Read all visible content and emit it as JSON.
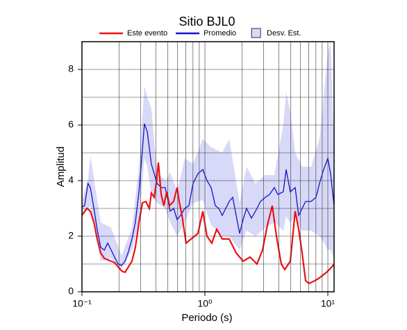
{
  "chart_data": {
    "type": "line",
    "title": "Sitio BJL0",
    "x_label": "Periodo (s)",
    "y_label": "Amplitud",
    "log_x": true,
    "grid": true,
    "xlim": [
      0.1,
      11.24
    ],
    "ylim": [
      0,
      9
    ],
    "xticks": [
      {
        "value": 0.1,
        "label": "10⁻¹"
      },
      {
        "value": 1,
        "label": "10⁰"
      },
      {
        "value": 10,
        "label": "10¹"
      }
    ],
    "xgrid_minor": [
      0.2,
      0.3,
      0.4,
      0.5,
      0.6,
      0.7,
      0.8,
      0.9,
      2,
      3,
      4,
      5,
      6,
      7,
      8,
      9
    ],
    "yticks": [
      0,
      2,
      4,
      6,
      8
    ],
    "ygrid_minor": [
      1,
      3,
      5,
      7
    ],
    "band": {
      "name": "Desv. Est.",
      "color": "#d8d8f8",
      "x": [
        0.1,
        0.112,
        0.117,
        0.142,
        0.173,
        0.21,
        0.255,
        0.291,
        0.322,
        0.34,
        0.367,
        0.408,
        0.476,
        0.522,
        0.594,
        0.686,
        0.802,
        0.962,
        1.124,
        1.384,
        1.577,
        1.916,
        2.183,
        2.582,
        3.101,
        3.673,
        4.345,
        4.581,
        4.955,
        5.427,
        6.18,
        7.311,
        8.551,
        9.247,
        10.0,
        10.53,
        11.24
      ],
      "lower": [
        2.8,
        3.0,
        3.1,
        1.1,
        1.2,
        0.8,
        1.5,
        2.5,
        4.8,
        4.5,
        3.5,
        3.2,
        3.0,
        2.5,
        2.0,
        2.5,
        3.2,
        3.3,
        2.4,
        2.0,
        2.0,
        1.5,
        2.2,
        2.0,
        2.3,
        2.5,
        2.2,
        2.7,
        2.5,
        2.7,
        2.2,
        2.2,
        2.0,
        1.8,
        1.5,
        1.5,
        1.2
      ],
      "upper": [
        3.3,
        4.0,
        4.9,
        2.5,
        2.3,
        1.3,
        2.3,
        4.5,
        7.4,
        7.0,
        6.6,
        4.3,
        4.0,
        4.3,
        3.6,
        4.8,
        4.6,
        5.5,
        5.2,
        5.0,
        5.5,
        3.2,
        4.5,
        3.9,
        4.2,
        4.2,
        6.0,
        7.2,
        6.5,
        5.0,
        4.5,
        4.5,
        5.5,
        7.0,
        8.6,
        9.0,
        5.0
      ]
    },
    "series": [
      {
        "name": "Este evento",
        "color": "#ee1111",
        "x": [
          0.1,
          0.11,
          0.117,
          0.125,
          0.133,
          0.142,
          0.152,
          0.173,
          0.184,
          0.197,
          0.21,
          0.224,
          0.239,
          0.255,
          0.272,
          0.291,
          0.31,
          0.331,
          0.353,
          0.367,
          0.387,
          0.402,
          0.418,
          0.441,
          0.464,
          0.489,
          0.515,
          0.557,
          0.594,
          0.618,
          0.651,
          0.704,
          0.771,
          0.878,
          0.962,
          1.04,
          1.139,
          1.248,
          1.384,
          1.577,
          1.795,
          2.046,
          2.329,
          2.653,
          2.944,
          3.225,
          3.532,
          3.819,
          4.184,
          4.464,
          4.955,
          5.427,
          5.791,
          6.18,
          6.592,
          7.039,
          7.709,
          8.551,
          9.749,
          10.81,
          11.24
        ],
        "values": [
          2.75,
          3.0,
          2.9,
          2.5,
          1.9,
          1.4,
          1.2,
          1.1,
          1.05,
          0.9,
          0.75,
          0.7,
          0.9,
          1.1,
          1.6,
          2.5,
          3.2,
          3.25,
          3.0,
          3.55,
          3.4,
          3.9,
          4.65,
          3.5,
          3.1,
          3.6,
          3.1,
          3.25,
          3.75,
          3.25,
          2.75,
          1.75,
          1.9,
          2.1,
          2.9,
          2.0,
          1.75,
          2.25,
          1.9,
          1.9,
          1.4,
          1.1,
          1.25,
          1.0,
          1.5,
          2.4,
          3.1,
          2.0,
          1.0,
          0.8,
          1.1,
          2.9,
          2.25,
          1.4,
          0.4,
          0.3,
          0.38,
          0.5,
          0.7,
          0.9,
          1.0
        ]
      },
      {
        "name": "Promedio",
        "color": "#1111cc",
        "x": [
          0.1,
          0.105,
          0.112,
          0.117,
          0.125,
          0.133,
          0.142,
          0.152,
          0.162,
          0.173,
          0.184,
          0.197,
          0.21,
          0.224,
          0.239,
          0.255,
          0.272,
          0.291,
          0.31,
          0.322,
          0.34,
          0.367,
          0.387,
          0.408,
          0.441,
          0.476,
          0.522,
          0.557,
          0.594,
          0.634,
          0.686,
          0.741,
          0.802,
          0.878,
          0.962,
          1.04,
          1.124,
          1.215,
          1.297,
          1.384,
          1.477,
          1.577,
          1.683,
          1.795,
          1.916,
          2.046,
          2.183,
          2.39,
          2.582,
          2.831,
          3.101,
          3.353,
          3.673,
          3.917,
          4.345,
          4.581,
          4.955,
          5.427,
          5.791,
          6.18,
          6.592,
          7.311,
          8.017,
          8.551,
          9.247,
          10.0,
          10.53,
          11.24
        ],
        "values": [
          3.05,
          3.1,
          3.9,
          3.75,
          3.0,
          2.25,
          1.6,
          1.5,
          1.75,
          1.5,
          1.25,
          1.0,
          0.95,
          1.1,
          1.45,
          1.9,
          2.5,
          3.6,
          5.1,
          6.05,
          5.75,
          4.6,
          4.25,
          3.9,
          3.75,
          3.75,
          2.9,
          3.0,
          2.6,
          2.75,
          3.0,
          3.1,
          3.9,
          4.25,
          4.4,
          4.0,
          3.75,
          3.1,
          3.0,
          2.75,
          3.0,
          3.25,
          3.4,
          2.75,
          2.1,
          2.6,
          3.0,
          2.65,
          2.9,
          3.25,
          3.4,
          3.5,
          3.75,
          3.5,
          3.6,
          4.4,
          3.6,
          3.75,
          2.75,
          3.0,
          3.25,
          3.25,
          3.4,
          3.9,
          4.4,
          4.8,
          4.25,
          3.1
        ]
      }
    ]
  }
}
